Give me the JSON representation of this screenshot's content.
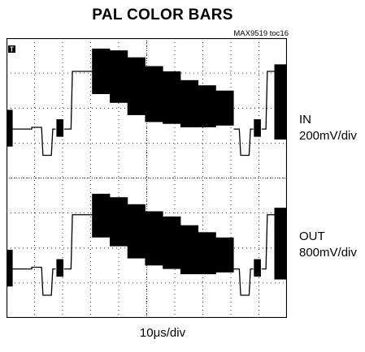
{
  "title": "PAL COLOR BARS",
  "figure_code": "MAX9519 toc16",
  "trigger_marker": "T",
  "chart_data": {
    "type": "line",
    "title": "PAL COLOR BARS",
    "grid": true,
    "grid_divisions": {
      "horizontal": 10,
      "vertical": 8
    },
    "xlabel": "10μs/div",
    "x_unit": "μs",
    "xlim": [
      0,
      100
    ],
    "series": [
      {
        "name": "IN",
        "scale": "200mV/div",
        "ylim": [
          0,
          800
        ]
      },
      {
        "name": "OUT",
        "scale": "800mV/div",
        "ylim": [
          -3200,
          0
        ]
      }
    ]
  }
}
